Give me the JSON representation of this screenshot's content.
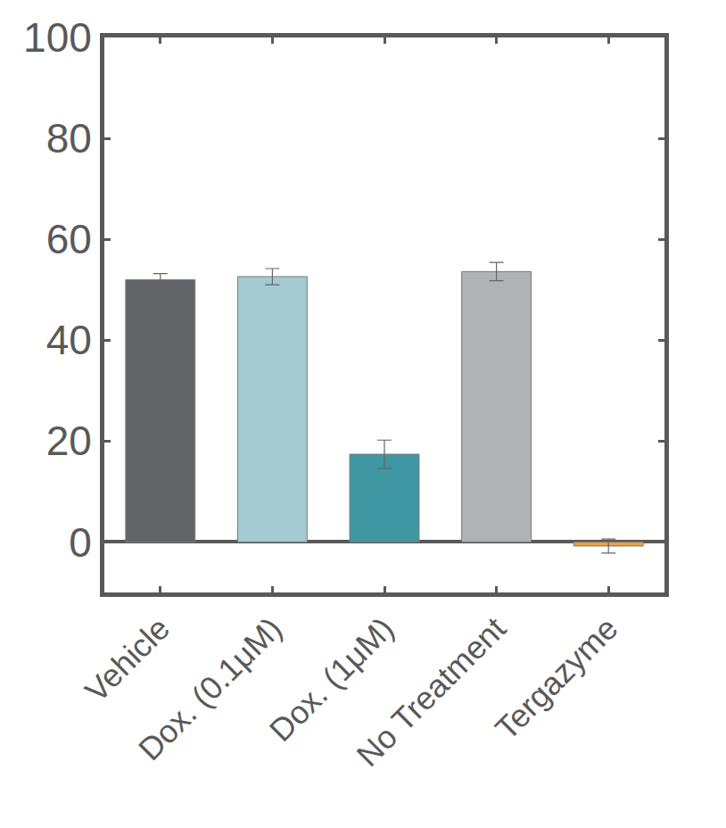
{
  "chart_data": {
    "type": "bar",
    "categories": [
      "Vehicle",
      "Dox. (0.1μM)",
      "Dox. (1μM)",
      "No Treatment",
      "Tergazyme"
    ],
    "values": [
      52,
      52.6,
      17.4,
      53.6,
      -0.8
    ],
    "errors": [
      1.2,
      1.6,
      2.8,
      1.8,
      1.4
    ],
    "colors": [
      "#636467",
      "#a3cad1",
      "#3f97a3",
      "#b1b2b4",
      "#f0a03c"
    ],
    "ylim": [
      -10,
      100
    ],
    "yticks": [
      0,
      20,
      40,
      60,
      80,
      100
    ],
    "grid": false
  }
}
